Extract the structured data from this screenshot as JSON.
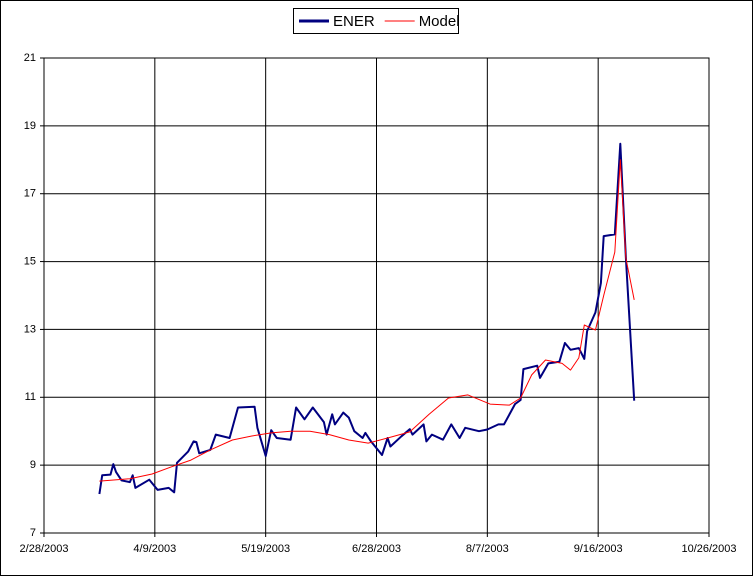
{
  "chart_data": {
    "type": "line",
    "xlim": [
      "2/28/2003",
      "10/26/2003"
    ],
    "xticks": [
      "2/28/2003",
      "4/9/2003",
      "5/19/2003",
      "6/28/2003",
      "8/7/2003",
      "9/16/2003",
      "10/26/2003"
    ],
    "ylim": [
      7,
      21
    ],
    "yticks": [
      7,
      9,
      11,
      13,
      15,
      17,
      19,
      21
    ],
    "grid": true,
    "legend": "top",
    "series": [
      {
        "name": "ENER",
        "color": "#000080",
        "x": [
          "3/20/2003",
          "3/21/2003",
          "3/24/2003",
          "3/25/2003",
          "3/26/2003",
          "3/28/2003",
          "3/31/2003",
          "4/1/2003",
          "4/2/2003",
          "4/7/2003",
          "4/10/2003",
          "4/14/2003",
          "4/16/2003",
          "4/17/2003",
          "4/21/2003",
          "4/23/2003",
          "4/24/2003",
          "4/25/2003",
          "4/29/2003",
          "5/1/2003",
          "5/6/2003",
          "5/9/2003",
          "5/15/2003",
          "5/16/2003",
          "5/19/2003",
          "5/21/2003",
          "5/23/2003",
          "5/28/2003",
          "5/30/2003",
          "6/2/2003",
          "6/5/2003",
          "6/9/2003",
          "6/10/2003",
          "6/12/2003",
          "6/13/2003",
          "6/16/2003",
          "6/18/2003",
          "6/20/2003",
          "6/23/2003",
          "6/24/2003",
          "6/26/2003",
          "6/30/2003",
          "7/2/2003",
          "7/3/2003",
          "7/7/2003",
          "7/10/2003",
          "7/11/2003",
          "7/15/2003",
          "7/16/2003",
          "7/18/2003",
          "7/22/2003",
          "7/25/2003",
          "7/28/2003",
          "7/30/2003",
          "8/4/2003",
          "8/7/2003",
          "8/11/2003",
          "8/13/2003",
          "8/17/2003",
          "8/19/2003",
          "8/20/2003",
          "8/25/2003",
          "8/26/2003",
          "8/29/2003",
          "9/2/2003",
          "9/4/2003",
          "9/6/2003",
          "9/9/2003",
          "9/11/2003",
          "9/12/2003",
          "9/15/2003",
          "9/17/2003",
          "9/18/2003",
          "9/22/2003",
          "9/24/2003",
          "9/26/2003",
          "9/29/2003"
        ],
        "values": [
          8.15,
          8.7,
          8.72,
          9.03,
          8.8,
          8.55,
          8.5,
          8.7,
          8.33,
          8.57,
          8.27,
          8.33,
          8.2,
          9.07,
          9.4,
          9.7,
          9.68,
          9.35,
          9.45,
          9.9,
          9.8,
          10.7,
          10.72,
          10.1,
          9.27,
          10.03,
          9.8,
          9.75,
          10.7,
          10.35,
          10.7,
          10.27,
          9.9,
          10.5,
          10.2,
          10.55,
          10.4,
          10.0,
          9.8,
          9.95,
          9.7,
          9.3,
          9.8,
          9.55,
          9.85,
          10.06,
          9.9,
          10.2,
          9.7,
          9.9,
          9.75,
          10.2,
          9.8,
          10.1,
          10.0,
          10.05,
          10.2,
          10.2,
          10.8,
          10.92,
          11.83,
          11.93,
          11.57,
          12.0,
          12.05,
          12.6,
          12.4,
          12.45,
          12.13,
          12.95,
          13.5,
          14.37,
          15.75,
          15.8,
          18.47,
          15.1,
          10.9
        ]
      },
      {
        "name": "Model",
        "color": "#ff0000",
        "x": [
          "3/20/2003",
          "3/31/2003",
          "4/8/2003",
          "4/15/2003",
          "4/22/2003",
          "4/29/2003",
          "5/7/2003",
          "5/14/2003",
          "5/21/2003",
          "5/28/2003",
          "6/4/2003",
          "6/11/2003",
          "6/18/2003",
          "6/25/2003",
          "7/2/2003",
          "7/10/2003",
          "7/17/2003",
          "7/24/2003",
          "7/31/2003",
          "8/8/2003",
          "8/15/2003",
          "8/19/2003",
          "8/23/2003",
          "8/28/2003",
          "9/3/2003",
          "9/6/2003",
          "9/9/2003",
          "9/11/2003",
          "9/15/2003",
          "9/18/2003",
          "9/22/2003",
          "9/24/2003",
          "9/26/2003",
          "9/29/2003"
        ],
        "values": [
          8.53,
          8.6,
          8.74,
          8.95,
          9.15,
          9.45,
          9.74,
          9.86,
          9.95,
          10.0,
          10.0,
          9.9,
          9.74,
          9.65,
          9.8,
          9.98,
          10.5,
          10.98,
          11.07,
          10.8,
          10.77,
          10.98,
          11.66,
          12.1,
          12.0,
          11.8,
          12.16,
          13.13,
          12.98,
          14.0,
          15.28,
          18.0,
          15.1,
          13.87
        ]
      }
    ]
  }
}
